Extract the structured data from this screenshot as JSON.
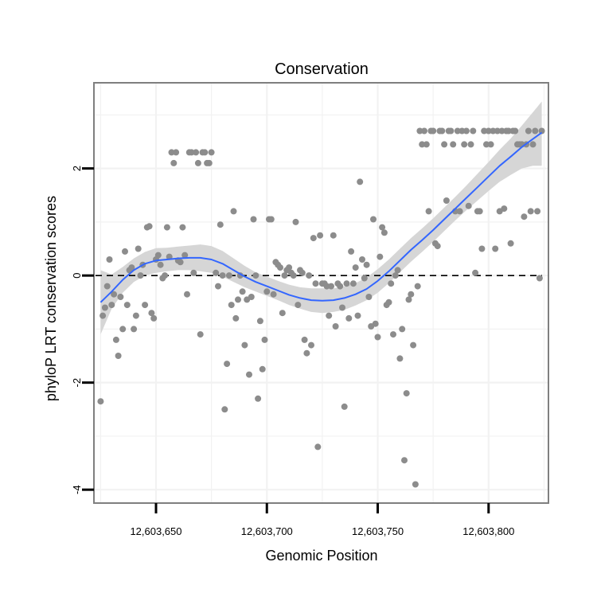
{
  "chart_data": {
    "type": "scatter",
    "title": "Conservation",
    "xlabel": "Genomic Position",
    "ylabel": "phyloP LRT conservation scores",
    "xlim": [
      12603622,
      12603827
    ],
    "ylim": [
      -4.25,
      3.6
    ],
    "xticks": [
      12603650,
      12603700,
      12603750,
      12603800
    ],
    "xtick_labels": [
      "12,603,650",
      "12,603,700",
      "12,603,750",
      "12,603,800"
    ],
    "yticks": [
      -4,
      -2,
      0,
      2
    ],
    "ytick_labels": [
      "-4",
      "-2",
      "0",
      "2"
    ],
    "grid": true,
    "reference_line": {
      "y": 0,
      "style": "dashed"
    },
    "colors": {
      "points": "#8c8c8c",
      "smooth": "#3366ff",
      "band": "#d6d6d6",
      "reference": "#000000",
      "border": "#7f7f7f",
      "grid": "#f2f2f2"
    },
    "points": [
      [
        12603625,
        -2.35
      ],
      [
        12603626,
        -0.75
      ],
      [
        12603627,
        -0.6
      ],
      [
        12603628,
        -0.2
      ],
      [
        12603629,
        0.3
      ],
      [
        12603630,
        -0.55
      ],
      [
        12603631,
        -0.35
      ],
      [
        12603632,
        -1.2
      ],
      [
        12603633,
        -1.5
      ],
      [
        12603634,
        -0.4
      ],
      [
        12603635,
        -1.0
      ],
      [
        12603636,
        0.45
      ],
      [
        12603637,
        -0.55
      ],
      [
        12603638,
        0.1
      ],
      [
        12603639,
        0.15
      ],
      [
        12603640,
        -1.0
      ],
      [
        12603641,
        -0.75
      ],
      [
        12603642,
        0.5
      ],
      [
        12603643,
        0.0
      ],
      [
        12603644,
        0.2
      ],
      [
        12603645,
        -0.55
      ],
      [
        12603646,
        0.9
      ],
      [
        12603647,
        0.92
      ],
      [
        12603648,
        -0.7
      ],
      [
        12603649,
        -0.8
      ],
      [
        12603650,
        0.3
      ],
      [
        12603651,
        0.38
      ],
      [
        12603652,
        0.2
      ],
      [
        12603653,
        -0.05
      ],
      [
        12603654,
        0.0
      ],
      [
        12603655,
        0.9
      ],
      [
        12603656,
        0.35
      ],
      [
        12603657,
        2.3
      ],
      [
        12603658,
        2.1
      ],
      [
        12603659,
        2.3
      ],
      [
        12603660,
        0.28
      ],
      [
        12603661,
        0.25
      ],
      [
        12603662,
        0.9
      ],
      [
        12603663,
        0.38
      ],
      [
        12603664,
        -0.35
      ],
      [
        12603665,
        2.3
      ],
      [
        12603666,
        2.3
      ],
      [
        12603667,
        0.05
      ],
      [
        12603668,
        2.3
      ],
      [
        12603669,
        2.1
      ],
      [
        12603670,
        -1.1
      ],
      [
        12603671,
        2.3
      ],
      [
        12603672,
        2.3
      ],
      [
        12603673,
        2.1
      ],
      [
        12603674,
        2.1
      ],
      [
        12603675,
        2.3
      ],
      [
        12603677,
        0.05
      ],
      [
        12603678,
        -0.2
      ],
      [
        12603679,
        0.95
      ],
      [
        12603680,
        0.0
      ],
      [
        12603681,
        -2.5
      ],
      [
        12603682,
        -1.65
      ],
      [
        12603683,
        0.0
      ],
      [
        12603684,
        -0.55
      ],
      [
        12603685,
        1.2
      ],
      [
        12603686,
        -0.8
      ],
      [
        12603687,
        -0.45
      ],
      [
        12603688,
        0.0
      ],
      [
        12603689,
        -0.3
      ],
      [
        12603690,
        -1.3
      ],
      [
        12603691,
        -0.45
      ],
      [
        12603692,
        -1.85
      ],
      [
        12603693,
        -0.4
      ],
      [
        12603694,
        1.05
      ],
      [
        12603695,
        0.0
      ],
      [
        12603696,
        -2.3
      ],
      [
        12603697,
        -0.85
      ],
      [
        12603698,
        -1.75
      ],
      [
        12603699,
        -1.2
      ],
      [
        12603700,
        -0.3
      ],
      [
        12603701,
        1.05
      ],
      [
        12603702,
        1.05
      ],
      [
        12603703,
        -0.35
      ],
      [
        12603704,
        0.25
      ],
      [
        12603705,
        0.2
      ],
      [
        12603706,
        0.15
      ],
      [
        12603707,
        -0.7
      ],
      [
        12603708,
        0.0
      ],
      [
        12603709,
        0.1
      ],
      [
        12603710,
        0.15
      ],
      [
        12603711,
        0.05
      ],
      [
        12603712,
        0.0
      ],
      [
        12603713,
        1.0
      ],
      [
        12603714,
        -0.55
      ],
      [
        12603715,
        0.1
      ],
      [
        12603716,
        0.05
      ],
      [
        12603717,
        -1.2
      ],
      [
        12603718,
        -1.45
      ],
      [
        12603719,
        0.0
      ],
      [
        12603720,
        -1.3
      ],
      [
        12603721,
        0.7
      ],
      [
        12603722,
        -0.15
      ],
      [
        12603723,
        -3.2
      ],
      [
        12603724,
        0.75
      ],
      [
        12603725,
        -0.15
      ],
      [
        12603726,
        -0.15
      ],
      [
        12603727,
        -0.2
      ],
      [
        12603728,
        -0.75
      ],
      [
        12603729,
        -0.2
      ],
      [
        12603730,
        0.75
      ],
      [
        12603731,
        -0.95
      ],
      [
        12603732,
        -0.15
      ],
      [
        12603733,
        -0.2
      ],
      [
        12603734,
        -0.6
      ],
      [
        12603735,
        -2.45
      ],
      [
        12603736,
        -0.15
      ],
      [
        12603737,
        -0.8
      ],
      [
        12603738,
        0.45
      ],
      [
        12603739,
        -0.15
      ],
      [
        12603740,
        0.15
      ],
      [
        12603741,
        -0.75
      ],
      [
        12603742,
        1.75
      ],
      [
        12603743,
        0.3
      ],
      [
        12603744,
        -0.05
      ],
      [
        12603745,
        0.2
      ],
      [
        12603746,
        -0.4
      ],
      [
        12603747,
        -0.95
      ],
      [
        12603748,
        1.05
      ],
      [
        12603749,
        -0.9
      ],
      [
        12603750,
        -1.15
      ],
      [
        12603751,
        0.35
      ],
      [
        12603752,
        0.9
      ],
      [
        12603753,
        0.8
      ],
      [
        12603754,
        -0.55
      ],
      [
        12603755,
        -0.5
      ],
      [
        12603756,
        -0.15
      ],
      [
        12603757,
        -1.1
      ],
      [
        12603758,
        0.0
      ],
      [
        12603759,
        0.1
      ],
      [
        12603760,
        -1.55
      ],
      [
        12603761,
        -1.0
      ],
      [
        12603762,
        -3.45
      ],
      [
        12603763,
        -2.2
      ],
      [
        12603764,
        -0.45
      ],
      [
        12603765,
        -0.35
      ],
      [
        12603766,
        -1.3
      ],
      [
        12603767,
        -3.9
      ],
      [
        12603768,
        -0.2
      ],
      [
        12603769,
        2.7
      ],
      [
        12603770,
        2.45
      ],
      [
        12603771,
        2.7
      ],
      [
        12603772,
        2.45
      ],
      [
        12603773,
        1.2
      ],
      [
        12603774,
        2.7
      ],
      [
        12603775,
        2.7
      ],
      [
        12603776,
        0.6
      ],
      [
        12603777,
        0.55
      ],
      [
        12603778,
        2.7
      ],
      [
        12603779,
        2.7
      ],
      [
        12603780,
        2.45
      ],
      [
        12603781,
        1.4
      ],
      [
        12603782,
        2.7
      ],
      [
        12603783,
        2.7
      ],
      [
        12603784,
        2.45
      ],
      [
        12603785,
        1.2
      ],
      [
        12603786,
        2.7
      ],
      [
        12603787,
        1.2
      ],
      [
        12603788,
        2.7
      ],
      [
        12603789,
        2.45
      ],
      [
        12603790,
        2.7
      ],
      [
        12603791,
        1.3
      ],
      [
        12603792,
        2.45
      ],
      [
        12603793,
        2.7
      ],
      [
        12603794,
        0.05
      ],
      [
        12603795,
        1.2
      ],
      [
        12603796,
        1.2
      ],
      [
        12603797,
        0.5
      ],
      [
        12603798,
        2.7
      ],
      [
        12603799,
        2.45
      ],
      [
        12603800,
        2.7
      ],
      [
        12603801,
        2.45
      ],
      [
        12603802,
        2.7
      ],
      [
        12603803,
        0.5
      ],
      [
        12603804,
        2.7
      ],
      [
        12603805,
        1.2
      ],
      [
        12603806,
        2.7
      ],
      [
        12603807,
        1.25
      ],
      [
        12603808,
        2.7
      ],
      [
        12603809,
        2.7
      ],
      [
        12603810,
        0.6
      ],
      [
        12603811,
        2.7
      ],
      [
        12603812,
        2.7
      ],
      [
        12603813,
        2.45
      ],
      [
        12603814,
        2.45
      ],
      [
        12603815,
        2.45
      ],
      [
        12603816,
        1.1
      ],
      [
        12603817,
        2.45
      ],
      [
        12603818,
        2.7
      ],
      [
        12603819,
        1.2
      ],
      [
        12603820,
        2.45
      ],
      [
        12603821,
        2.7
      ],
      [
        12603822,
        1.2
      ],
      [
        12603823,
        -0.05
      ],
      [
        12603824,
        2.7
      ]
    ],
    "smooth": [
      {
        "x": 12603625,
        "y": -0.5,
        "lo": -1.1,
        "hi": 0.1
      },
      {
        "x": 12603630,
        "y": -0.3,
        "lo": -0.62,
        "hi": 0.02
      },
      {
        "x": 12603635,
        "y": -0.08,
        "lo": -0.32,
        "hi": 0.16
      },
      {
        "x": 12603640,
        "y": 0.1,
        "lo": -0.12,
        "hi": 0.32
      },
      {
        "x": 12603645,
        "y": 0.22,
        "lo": 0.0,
        "hi": 0.44
      },
      {
        "x": 12603650,
        "y": 0.28,
        "lo": 0.05,
        "hi": 0.51
      },
      {
        "x": 12603655,
        "y": 0.3,
        "lo": 0.08,
        "hi": 0.52
      },
      {
        "x": 12603660,
        "y": 0.32,
        "lo": 0.1,
        "hi": 0.54
      },
      {
        "x": 12603665,
        "y": 0.33,
        "lo": 0.1,
        "hi": 0.56
      },
      {
        "x": 12603670,
        "y": 0.33,
        "lo": 0.08,
        "hi": 0.58
      },
      {
        "x": 12603675,
        "y": 0.3,
        "lo": 0.05,
        "hi": 0.55
      },
      {
        "x": 12603680,
        "y": 0.22,
        "lo": -0.02,
        "hi": 0.46
      },
      {
        "x": 12603685,
        "y": 0.1,
        "lo": -0.12,
        "hi": 0.32
      },
      {
        "x": 12603690,
        "y": -0.02,
        "lo": -0.22,
        "hi": 0.18
      },
      {
        "x": 12603695,
        "y": -0.12,
        "lo": -0.3,
        "hi": 0.06
      },
      {
        "x": 12603700,
        "y": -0.2,
        "lo": -0.38,
        "hi": -0.02
      },
      {
        "x": 12603705,
        "y": -0.28,
        "lo": -0.46,
        "hi": -0.1
      },
      {
        "x": 12603710,
        "y": -0.36,
        "lo": -0.55,
        "hi": -0.17
      },
      {
        "x": 12603715,
        "y": -0.42,
        "lo": -0.62,
        "hi": -0.22
      },
      {
        "x": 12603720,
        "y": -0.46,
        "lo": -0.68,
        "hi": -0.24
      },
      {
        "x": 12603725,
        "y": -0.47,
        "lo": -0.7,
        "hi": -0.24
      },
      {
        "x": 12603730,
        "y": -0.46,
        "lo": -0.68,
        "hi": -0.24
      },
      {
        "x": 12603735,
        "y": -0.42,
        "lo": -0.64,
        "hi": -0.2
      },
      {
        "x": 12603740,
        "y": -0.35,
        "lo": -0.56,
        "hi": -0.14
      },
      {
        "x": 12603745,
        "y": -0.25,
        "lo": -0.46,
        "hi": -0.04
      },
      {
        "x": 12603750,
        "y": -0.1,
        "lo": -0.32,
        "hi": 0.12
      },
      {
        "x": 12603755,
        "y": 0.08,
        "lo": -0.14,
        "hi": 0.3
      },
      {
        "x": 12603760,
        "y": 0.28,
        "lo": 0.06,
        "hi": 0.5
      },
      {
        "x": 12603765,
        "y": 0.48,
        "lo": 0.26,
        "hi": 0.7
      },
      {
        "x": 12603770,
        "y": 0.66,
        "lo": 0.44,
        "hi": 0.88
      },
      {
        "x": 12603775,
        "y": 0.85,
        "lo": 0.63,
        "hi": 1.07
      },
      {
        "x": 12603780,
        "y": 1.05,
        "lo": 0.83,
        "hi": 1.27
      },
      {
        "x": 12603785,
        "y": 1.25,
        "lo": 1.03,
        "hi": 1.47
      },
      {
        "x": 12603790,
        "y": 1.45,
        "lo": 1.22,
        "hi": 1.68
      },
      {
        "x": 12603795,
        "y": 1.65,
        "lo": 1.4,
        "hi": 1.9
      },
      {
        "x": 12603800,
        "y": 1.85,
        "lo": 1.58,
        "hi": 2.12
      },
      {
        "x": 12603805,
        "y": 2.05,
        "lo": 1.75,
        "hi": 2.35
      },
      {
        "x": 12603810,
        "y": 2.22,
        "lo": 1.88,
        "hi": 2.56
      },
      {
        "x": 12603815,
        "y": 2.4,
        "lo": 2.0,
        "hi": 2.8
      },
      {
        "x": 12603820,
        "y": 2.55,
        "lo": 2.05,
        "hi": 3.05
      },
      {
        "x": 12603824,
        "y": 2.67,
        "lo": 2.05,
        "hi": 3.25
      }
    ]
  }
}
